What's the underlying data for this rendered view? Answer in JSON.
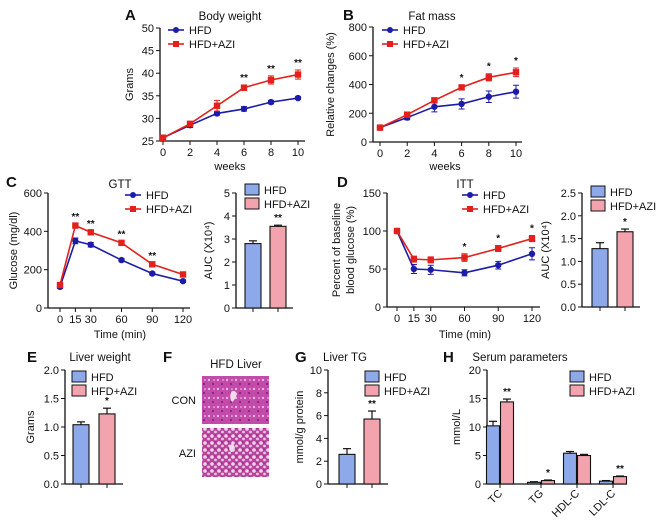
{
  "colors": {
    "hfd_line": "#1c1ca8",
    "azi_line": "#e3201c",
    "hfd_bar": "#8ea9ea",
    "azi_bar": "#f2a3ad",
    "axis": "#111111"
  },
  "chart_data": [
    {
      "panel": "A",
      "type": "line",
      "title": "Body weight",
      "xlabel": "weeks",
      "ylabel": "Grams",
      "x": [
        0,
        2,
        4,
        6,
        8,
        10
      ],
      "xticks": [
        "0",
        "2",
        "4",
        "6",
        "8",
        "10"
      ],
      "xlim": [
        0,
        10
      ],
      "ylim": [
        25,
        50
      ],
      "yticks": [
        "25",
        "30",
        "35",
        "40",
        "45",
        "50"
      ],
      "series": [
        {
          "name": "HFD",
          "values": [
            25.7,
            28.5,
            31.1,
            32.1,
            33.6,
            34.5
          ],
          "err": [
            0.6,
            0.5,
            0.4,
            0.5,
            0.4,
            0.3
          ]
        },
        {
          "name": "HFD+AZI",
          "values": [
            25.7,
            28.8,
            32.8,
            36.8,
            38.5,
            39.7
          ],
          "err": [
            0.6,
            0.5,
            1.2,
            0.6,
            0.9,
            1.0
          ]
        }
      ],
      "stars": [
        "",
        "",
        "",
        "**",
        "**",
        "**"
      ],
      "legend": "top-left"
    },
    {
      "panel": "B",
      "type": "line",
      "title": "Fat mass",
      "xlabel": "weeks",
      "ylabel": "Relative changes (%)",
      "x": [
        0,
        2,
        4,
        6,
        8,
        10
      ],
      "xticks": [
        "0",
        "2",
        "4",
        "6",
        "8",
        "10"
      ],
      "xlim": [
        0,
        10
      ],
      "ylim": [
        0,
        800
      ],
      "yticks": [
        "0",
        "200",
        "400",
        "600",
        "800"
      ],
      "series": [
        {
          "name": "HFD",
          "values": [
            100,
            170,
            245,
            265,
            315,
            350
          ],
          "err": [
            8,
            15,
            35,
            35,
            40,
            45
          ]
        },
        {
          "name": "HFD+AZI",
          "values": [
            100,
            190,
            290,
            380,
            450,
            485
          ],
          "err": [
            8,
            10,
            12,
            15,
            25,
            30
          ]
        }
      ],
      "stars": [
        "",
        "",
        "",
        "*",
        "*",
        "*"
      ],
      "legend": "top-left"
    },
    {
      "panel": "C",
      "type": "line",
      "title": "GTT",
      "xlabel": "Time (min)",
      "ylabel": "Glucose (mg/dl)",
      "x": [
        0,
        15,
        30,
        60,
        90,
        120
      ],
      "xticks": [
        "0",
        "15",
        "30",
        "60",
        "90",
        "120"
      ],
      "xlim": [
        0,
        120
      ],
      "ylim": [
        0,
        600
      ],
      "yticks": [
        "0",
        "200",
        "400",
        "600"
      ],
      "series": [
        {
          "name": "HFD",
          "values": [
            110,
            350,
            330,
            250,
            180,
            140
          ],
          "err": [
            8,
            15,
            12,
            8,
            8,
            6
          ]
        },
        {
          "name": "HFD+AZI",
          "values": [
            120,
            430,
            395,
            340,
            228,
            175
          ],
          "err": [
            8,
            8,
            8,
            8,
            8,
            6
          ]
        }
      ],
      "stars": [
        "",
        "**",
        "**",
        "**",
        "**",
        ""
      ],
      "legend": "top-right"
    },
    {
      "panel": "",
      "type": "bar",
      "title": "",
      "xlabel": "",
      "ylabel": "AUC (X10⁴)",
      "categories": [
        "HFD",
        "HFD+AZI"
      ],
      "values": [
        2.8,
        3.55
      ],
      "err": [
        0.12,
        0.05
      ],
      "ylim": [
        0,
        5
      ],
      "yticks": [
        "0",
        "1",
        "2",
        "3",
        "4",
        "5"
      ],
      "stars": [
        "",
        "**"
      ],
      "legend": "top"
    },
    {
      "panel": "D",
      "type": "line",
      "title": "ITT",
      "xlabel": "Time (min)",
      "ylabel": [
        "Percent of baseline",
        "blood glucose (%)"
      ],
      "x": [
        0,
        15,
        30,
        60,
        90,
        120
      ],
      "xticks": [
        "0",
        "15",
        "30",
        "60",
        "90",
        "120"
      ],
      "xlim": [
        0,
        120
      ],
      "ylim": [
        0,
        150
      ],
      "yticks": [
        "0",
        "50",
        "100",
        "150"
      ],
      "series": [
        {
          "name": "HFD",
          "values": [
            100,
            50,
            49,
            45,
            55,
            70
          ],
          "err": [
            2,
            6,
            6,
            4,
            5,
            8
          ]
        },
        {
          "name": "HFD+AZI",
          "values": [
            100,
            63,
            62,
            65,
            77,
            90
          ],
          "err": [
            2,
            4,
            4,
            5,
            4,
            4
          ]
        }
      ],
      "stars": [
        "",
        "",
        "",
        "*",
        "*",
        "*"
      ],
      "legend": "top-right"
    },
    {
      "panel": "",
      "type": "bar",
      "title": "",
      "xlabel": "",
      "ylabel": "AUC (X10⁴)",
      "categories": [
        "HFD",
        "HFD+AZI"
      ],
      "values": [
        1.28,
        1.65
      ],
      "err": [
        0.13,
        0.06
      ],
      "ylim": [
        0,
        2.5
      ],
      "yticks": [
        "0.0",
        "0.5",
        "1.0",
        "1.5",
        "2.0",
        "2.5"
      ],
      "stars": [
        "",
        "*"
      ],
      "legend": "top"
    },
    {
      "panel": "E",
      "type": "bar",
      "title": "Liver weight",
      "xlabel": "",
      "ylabel": "Grams",
      "categories": [
        "HFD",
        "HFD+AZI"
      ],
      "values": [
        1.04,
        1.23
      ],
      "err": [
        0.05,
        0.1
      ],
      "ylim": [
        0,
        2
      ],
      "yticks": [
        "0.0",
        "0.5",
        "1.0",
        "1.5",
        "2.0"
      ],
      "stars": [
        "",
        "*"
      ],
      "legend": "top"
    },
    {
      "panel": "G",
      "type": "bar",
      "title": "Liver TG",
      "xlabel": "",
      "ylabel": "mmol/g protein",
      "categories": [
        "HFD",
        "HFD+AZI"
      ],
      "values": [
        2.6,
        5.7
      ],
      "err": [
        0.5,
        0.7
      ],
      "ylim": [
        0,
        10
      ],
      "yticks": [
        "0",
        "2",
        "4",
        "6",
        "8",
        "10"
      ],
      "stars": [
        "",
        "**"
      ],
      "legend": "top"
    },
    {
      "panel": "H",
      "type": "bar",
      "title": "Serum parameters",
      "xlabel": "",
      "ylabel": "mmol/L",
      "categories": [
        "TC",
        "TG",
        "HDL-C",
        "LDL-C"
      ],
      "yticks": [
        "0",
        "5",
        "10",
        "15",
        "20"
      ],
      "ylim": [
        0,
        20
      ],
      "series": [
        {
          "name": "HFD",
          "values": [
            10.2,
            0.3,
            5.4,
            0.5
          ],
          "err": [
            0.8,
            0.1,
            0.3,
            0.1
          ]
        },
        {
          "name": "HFD+AZI",
          "values": [
            14.4,
            0.6,
            5.0,
            1.3
          ],
          "err": [
            0.5,
            0.1,
            0.2,
            0.1
          ]
        }
      ],
      "stars": [
        "**",
        "*",
        "",
        "**"
      ],
      "legend": "top-right"
    }
  ],
  "histology": {
    "panel": "F",
    "title": "HFD Liver",
    "rows": [
      "CON",
      "AZI"
    ]
  }
}
